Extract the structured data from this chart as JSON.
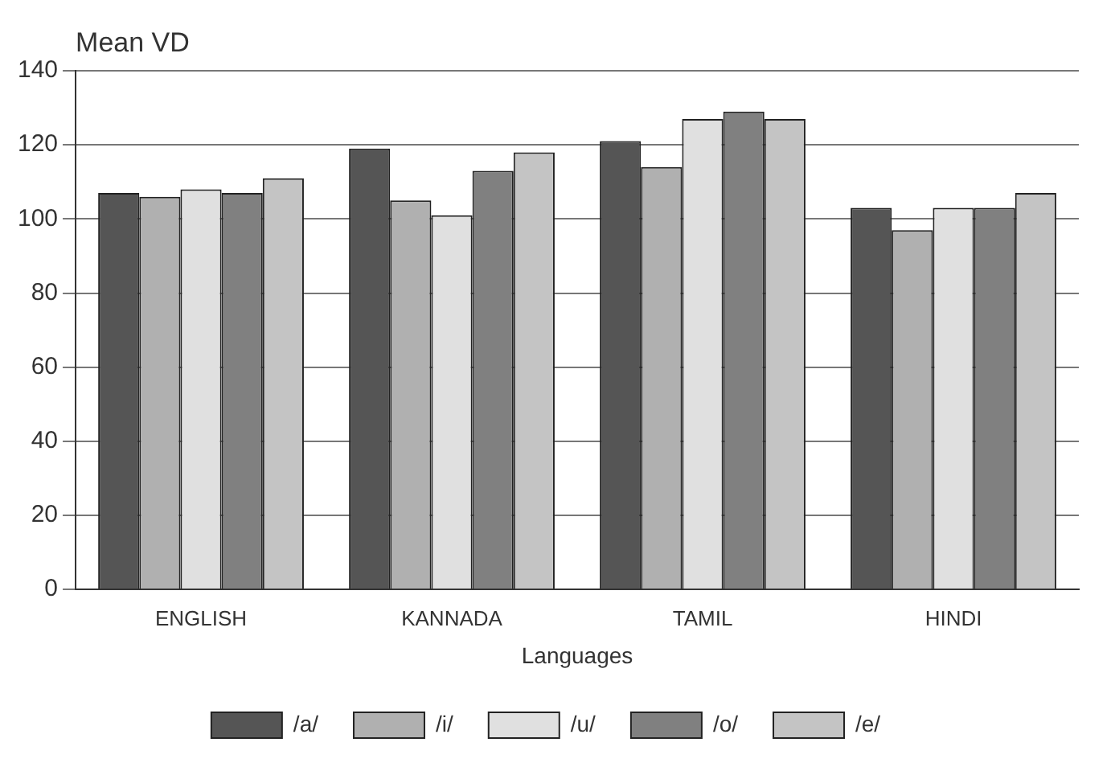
{
  "chart_data": {
    "type": "bar",
    "ylabel": "Mean VD",
    "xlabel": "Languages",
    "categories": [
      "ENGLISH",
      "KANNADA",
      "TAMIL",
      "HINDI"
    ],
    "series": [
      {
        "name": "/a/",
        "color": "#555555",
        "values": [
          107,
          119,
          121,
          103
        ]
      },
      {
        "name": "/i/",
        "color": "#b0b0b0",
        "values": [
          106,
          105,
          114,
          97
        ]
      },
      {
        "name": "/u/",
        "color": "#e0e0e0",
        "values": [
          108,
          101,
          127,
          103
        ]
      },
      {
        "name": "/o/",
        "color": "#808080",
        "values": [
          107,
          113,
          129,
          103
        ]
      },
      {
        "name": "/e/",
        "color": "#c4c4c4",
        "values": [
          111,
          118,
          127,
          107
        ]
      }
    ],
    "ylim": [
      0,
      140
    ],
    "yticks": [
      0,
      20,
      40,
      60,
      80,
      100,
      120,
      140
    ],
    "grid": "y",
    "legend": "bottom"
  }
}
